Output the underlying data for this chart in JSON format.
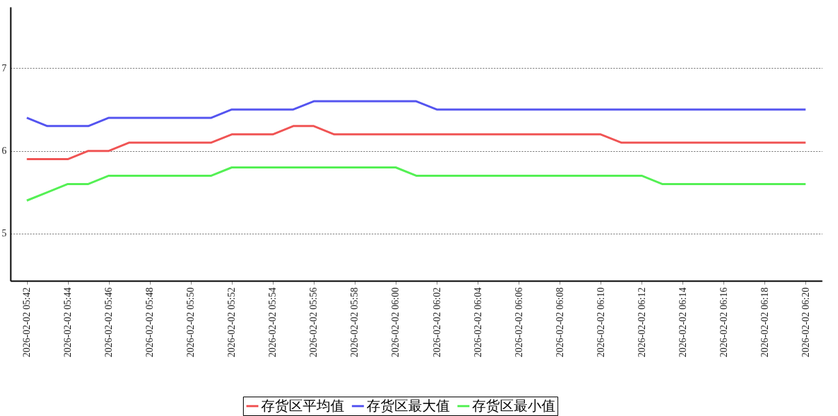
{
  "chart_data": {
    "type": "line",
    "x": [
      "2026-02-02T05:42",
      "2026-02-02T05:43",
      "2026-02-02T05:44",
      "2026-02-02T05:45",
      "2026-02-02T05:46",
      "2026-02-02T05:47",
      "2026-02-02T05:48",
      "2026-02-02T05:49",
      "2026-02-02T05:50",
      "2026-02-02T05:51",
      "2026-02-02T05:52",
      "2026-02-02T05:53",
      "2026-02-02T05:54",
      "2026-02-02T05:55",
      "2026-02-02T05:56",
      "2026-02-02T05:57",
      "2026-02-02T05:58",
      "2026-02-02T05:59",
      "2026-02-02T06:00",
      "2026-02-02T06:01",
      "2026-02-02T06:02",
      "2026-02-02T06:03",
      "2026-02-02T06:04",
      "2026-02-02T06:05",
      "2026-02-02T06:06",
      "2026-02-02T06:07",
      "2026-02-02T06:08",
      "2026-02-02T06:09",
      "2026-02-02T06:10",
      "2026-02-02T06:11",
      "2026-02-02T06:12",
      "2026-02-02T06:13",
      "2026-02-02T06:14",
      "2026-02-02T06:15",
      "2026-02-02T06:16",
      "2026-02-02T06:17",
      "2026-02-02T06:18",
      "2026-02-02T06:19",
      "2026-02-02T06:20"
    ],
    "series": [
      {
        "name": "存货区平均值",
        "color": "#f05454",
        "values": [
          5.9,
          5.9,
          5.9,
          6.0,
          6.0,
          6.1,
          6.1,
          6.1,
          6.1,
          6.1,
          6.2,
          6.2,
          6.2,
          6.3,
          6.3,
          6.2,
          6.2,
          6.2,
          6.2,
          6.2,
          6.2,
          6.2,
          6.2,
          6.2,
          6.2,
          6.2,
          6.2,
          6.2,
          6.2,
          6.1,
          6.1,
          6.1,
          6.1,
          6.1,
          6.1,
          6.1,
          6.1,
          6.1,
          6.1
        ]
      },
      {
        "name": "存货区最大值",
        "color": "#5454f0",
        "values": [
          6.4,
          6.3,
          6.3,
          6.3,
          6.4,
          6.4,
          6.4,
          6.4,
          6.4,
          6.4,
          6.5,
          6.5,
          6.5,
          6.5,
          6.6,
          6.6,
          6.6,
          6.6,
          6.6,
          6.6,
          6.5,
          6.5,
          6.5,
          6.5,
          6.5,
          6.5,
          6.5,
          6.5,
          6.5,
          6.5,
          6.5,
          6.5,
          6.5,
          6.5,
          6.5,
          6.5,
          6.5,
          6.5,
          6.5
        ]
      },
      {
        "name": "存货区最小值",
        "color": "#54f054",
        "values": [
          5.4,
          5.5,
          5.6,
          5.6,
          5.7,
          5.7,
          5.7,
          5.7,
          5.7,
          5.7,
          5.8,
          5.8,
          5.8,
          5.8,
          5.8,
          5.8,
          5.8,
          5.8,
          5.8,
          5.7,
          5.7,
          5.7,
          5.7,
          5.7,
          5.7,
          5.7,
          5.7,
          5.7,
          5.7,
          5.7,
          5.7,
          5.6,
          5.6,
          5.6,
          5.6,
          5.6,
          5.6,
          5.6,
          5.6
        ]
      }
    ],
    "xlim": [
      "2026-02-02T05:41:12",
      "2026-02-02T06:20:48"
    ],
    "xticks": [
      {
        "value": "2026-02-02T05:42",
        "label": "2026-02-02 05:42"
      },
      {
        "value": "2026-02-02T05:44",
        "label": "2026-02-02 05:44"
      },
      {
        "value": "2026-02-02T05:46",
        "label": "2026-02-02 05:46"
      },
      {
        "value": "2026-02-02T05:48",
        "label": "2026-02-02 05:48"
      },
      {
        "value": "2026-02-02T05:50",
        "label": "2026-02-02 05:50"
      },
      {
        "value": "2026-02-02T05:52",
        "label": "2026-02-02 05:52"
      },
      {
        "value": "2026-02-02T05:54",
        "label": "2026-02-02 05:54"
      },
      {
        "value": "2026-02-02T05:56",
        "label": "2026-02-02 05:56"
      },
      {
        "value": "2026-02-02T05:58",
        "label": "2026-02-02 05:58"
      },
      {
        "value": "2026-02-02T06:00",
        "label": "2026-02-02 06:00"
      },
      {
        "value": "2026-02-02T06:02",
        "label": "2026-02-02 06:02"
      },
      {
        "value": "2026-02-02T06:04",
        "label": "2026-02-02 06:04"
      },
      {
        "value": "2026-02-02T06:06",
        "label": "2026-02-02 06:06"
      },
      {
        "value": "2026-02-02T06:08",
        "label": "2026-02-02 06:08"
      },
      {
        "value": "2026-02-02T06:10",
        "label": "2026-02-02 06:10"
      },
      {
        "value": "2026-02-02T06:12",
        "label": "2026-02-02 06:12"
      },
      {
        "value": "2026-02-02T06:14",
        "label": "2026-02-02 06:14"
      },
      {
        "value": "2026-02-02T06:16",
        "label": "2026-02-02 06:16"
      },
      {
        "value": "2026-02-02T06:18",
        "label": "2026-02-02 06:18"
      },
      {
        "value": "2026-02-02T06:20",
        "label": "2026-02-02 06:20"
      }
    ],
    "ylim": [
      4.43,
      7.74
    ],
    "yticks": [
      5,
      6,
      7
    ],
    "grid": "y",
    "legend": "bottom",
    "marker": "none",
    "line_style": "solid"
  }
}
